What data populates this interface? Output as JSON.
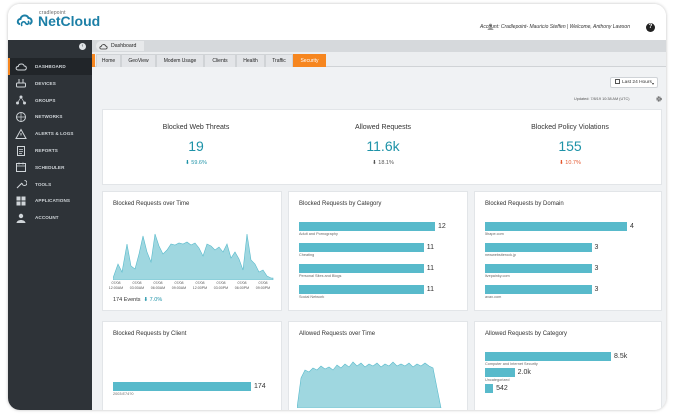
{
  "app": {
    "logo_small": "cradlepoint",
    "logo_big": "NetCloud",
    "account_text": "Account: Cradlepoint- Mauricio Steffen  |  Welcome, Anthony Lawson",
    "help": "?"
  },
  "sidebar": {
    "items": [
      {
        "label": "DASHBOARD",
        "icon": "cloud-icon"
      },
      {
        "label": "DEVICES",
        "icon": "router-icon"
      },
      {
        "label": "GROUPS",
        "icon": "groups-icon"
      },
      {
        "label": "NETWORKS",
        "icon": "network-icon"
      },
      {
        "label": "ALERTS & LOGS",
        "icon": "alert-icon"
      },
      {
        "label": "REPORTS",
        "icon": "report-icon"
      },
      {
        "label": "SCHEDULER",
        "icon": "calendar-icon"
      },
      {
        "label": "TOOLS",
        "icon": "tools-icon"
      },
      {
        "label": "APPLICATIONS",
        "icon": "applications-icon"
      },
      {
        "label": "ACCOUNT",
        "icon": "account-icon"
      }
    ]
  },
  "breadcrumb": "Dashboard",
  "tabs": [
    "Home",
    "GeoView",
    "Modem Usage",
    "Clients",
    "Health",
    "Traffic",
    "Security"
  ],
  "active_tab": "Security",
  "toolbar": {
    "time_range": "Last 24 Hours",
    "updated": "Updated: 7/8/19 10:38 AM (UTC)"
  },
  "kpis": [
    {
      "title": "Blocked Web Threats",
      "value": "19",
      "delta": "59.6%",
      "direction": "down",
      "color": "#1e93a8"
    },
    {
      "title": "Allowed Requests",
      "value": "11.6k",
      "delta": "18.1%",
      "direction": "down",
      "color": "#555555"
    },
    {
      "title": "Blocked Policy Violations",
      "value": "155",
      "delta": "10.7%",
      "direction": "down",
      "color": "#e4572e"
    }
  ],
  "panels": {
    "blocked_over_time": {
      "title": "Blocked Requests over Time",
      "x_labels": [
        "07/08\n12:00AM",
        "07/08\n03:00AM",
        "07/08\n06:00AM",
        "07/08\n09:00AM",
        "07/08\n12:00PM",
        "07/08\n03:00PM",
        "07/08\n06:00PM",
        "07/08\n09:00PM"
      ],
      "events": "174 Events",
      "events_delta": "7.0%"
    },
    "by_category": {
      "title": "Blocked Requests by Category",
      "rows": [
        {
          "label": "Adult and Pornography",
          "value": "12",
          "fraction": 1.0
        },
        {
          "label": "Cheating",
          "value": "11",
          "fraction": 0.917
        },
        {
          "label": "Personal Sites and Blogs",
          "value": "11",
          "fraction": 0.917
        },
        {
          "label": "Social Network",
          "value": "11",
          "fraction": 0.917
        }
      ]
    },
    "by_domain": {
      "title": "Blocked Requests by Domain",
      "rows": [
        {
          "label": "5hape.com",
          "value": "4",
          "fraction": 1.0
        },
        {
          "label": "newwebsiterock.jp",
          "value": "3",
          "fraction": 0.75
        },
        {
          "label": "livepainky.com",
          "value": "3",
          "fraction": 0.75
        },
        {
          "label": "avax.com",
          "value": "3",
          "fraction": 0.75
        }
      ]
    },
    "by_client": {
      "title": "Blocked Requests by Client",
      "rows": [
        {
          "label": "2003:E74?0",
          "value": "174",
          "fraction": 1.0
        }
      ]
    },
    "allowed_over_time": {
      "title": "Allowed Requests over Time"
    },
    "allowed_by_category": {
      "title": "Allowed Requests by Category",
      "rows": [
        {
          "label": "Computer and Internet Security",
          "value": "8.5k",
          "fraction": 1.0
        },
        {
          "label": "Uncategorized",
          "value": "2.0k",
          "fraction": 0.235
        },
        {
          "label": "",
          "value": "542",
          "fraction": 0.064
        }
      ]
    }
  },
  "colors": {
    "accent": "#f6861f",
    "brand": "#1c7fa6",
    "bar": "#58bacb",
    "sidebar": "#2e3338"
  }
}
